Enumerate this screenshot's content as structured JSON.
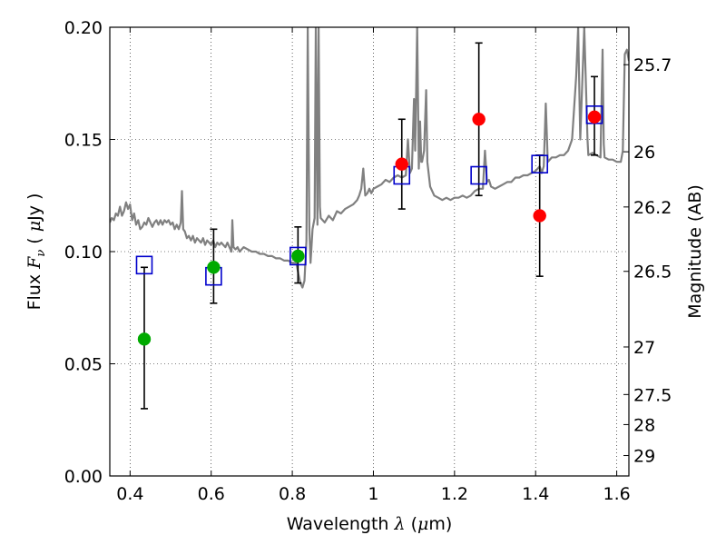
{
  "chart_data": {
    "type": "scatter",
    "xlabel_prefix": "Wavelength",
    "xlabel_symbol": "λ",
    "xlabel_unit_open": "(",
    "xlabel_unit_mu": "μ",
    "xlabel_unit_rest": "m)",
    "ylabel_prefix": "Flux",
    "ylabel_symbol": "F",
    "ylabel_sub": "ν",
    "ylabel_unit_open": "(",
    "ylabel_unit_mu": "μ",
    "ylabel_unit_rest": "Jy )",
    "y2label": "Magnitude (AB)",
    "xlim": [
      0.35,
      1.63
    ],
    "ylim": [
      0.0,
      0.2
    ],
    "x_ticks": [
      {
        "value": 0.4,
        "label": "0.4"
      },
      {
        "value": 0.6,
        "label": "0.6"
      },
      {
        "value": 0.8,
        "label": "0.8"
      },
      {
        "value": 1.0,
        "label": "1"
      },
      {
        "value": 1.2,
        "label": "1.2"
      },
      {
        "value": 1.4,
        "label": "1.4"
      },
      {
        "value": 1.6,
        "label": "1.6"
      }
    ],
    "y_ticks": [
      {
        "value": 0.0,
        "label": "0.00"
      },
      {
        "value": 0.05,
        "label": "0.05"
      },
      {
        "value": 0.1,
        "label": "0.10"
      },
      {
        "value": 0.15,
        "label": "0.15"
      },
      {
        "value": 0.2,
        "label": "0.20"
      }
    ],
    "mag_ticks": [
      {
        "flux": 0.1833,
        "label": "25.7"
      },
      {
        "flux": 0.1445,
        "label": "26"
      },
      {
        "flux": 0.1199,
        "label": "26.2"
      },
      {
        "flux": 0.0912,
        "label": "26.5"
      },
      {
        "flux": 0.0575,
        "label": "27"
      },
      {
        "flux": 0.0363,
        "label": "27.5"
      },
      {
        "flux": 0.0229,
        "label": "28"
      },
      {
        "flux": 0.0091,
        "label": "29"
      }
    ],
    "grid": true,
    "model_spectrum": {
      "color": "#808080",
      "points": [
        [
          0.35,
          0.113
        ],
        [
          0.355,
          0.115
        ],
        [
          0.36,
          0.114
        ],
        [
          0.365,
          0.117
        ],
        [
          0.37,
          0.116
        ],
        [
          0.375,
          0.12
        ],
        [
          0.38,
          0.116
        ],
        [
          0.385,
          0.118
        ],
        [
          0.39,
          0.122
        ],
        [
          0.395,
          0.119
        ],
        [
          0.4,
          0.121
        ],
        [
          0.405,
          0.114
        ],
        [
          0.41,
          0.117
        ],
        [
          0.415,
          0.112
        ],
        [
          0.42,
          0.114
        ],
        [
          0.425,
          0.11
        ],
        [
          0.43,
          0.111
        ],
        [
          0.435,
          0.113
        ],
        [
          0.44,
          0.112
        ],
        [
          0.445,
          0.115
        ],
        [
          0.45,
          0.113
        ],
        [
          0.455,
          0.111
        ],
        [
          0.46,
          0.113
        ],
        [
          0.465,
          0.114
        ],
        [
          0.47,
          0.112
        ],
        [
          0.475,
          0.114
        ],
        [
          0.48,
          0.112
        ],
        [
          0.485,
          0.114
        ],
        [
          0.49,
          0.113
        ],
        [
          0.495,
          0.114
        ],
        [
          0.5,
          0.112
        ],
        [
          0.505,
          0.113
        ],
        [
          0.51,
          0.11
        ],
        [
          0.515,
          0.112
        ],
        [
          0.52,
          0.11
        ],
        [
          0.525,
          0.113
        ],
        [
          0.528,
          0.127
        ],
        [
          0.531,
          0.11
        ],
        [
          0.535,
          0.109
        ],
        [
          0.54,
          0.106
        ],
        [
          0.545,
          0.107
        ],
        [
          0.55,
          0.105
        ],
        [
          0.555,
          0.107
        ],
        [
          0.56,
          0.104
        ],
        [
          0.565,
          0.106
        ],
        [
          0.57,
          0.105
        ],
        [
          0.575,
          0.104
        ],
        [
          0.58,
          0.106
        ],
        [
          0.585,
          0.103
        ],
        [
          0.59,
          0.105
        ],
        [
          0.595,
          0.104
        ],
        [
          0.6,
          0.103
        ],
        [
          0.605,
          0.105
        ],
        [
          0.61,
          0.102
        ],
        [
          0.615,
          0.104
        ],
        [
          0.62,
          0.103
        ],
        [
          0.625,
          0.104
        ],
        [
          0.63,
          0.103
        ],
        [
          0.635,
          0.102
        ],
        [
          0.64,
          0.104
        ],
        [
          0.645,
          0.102
        ],
        [
          0.65,
          0.1
        ],
        [
          0.652,
          0.114
        ],
        [
          0.655,
          0.102
        ],
        [
          0.66,
          0.101
        ],
        [
          0.665,
          0.102
        ],
        [
          0.67,
          0.1
        ],
        [
          0.68,
          0.102
        ],
        [
          0.69,
          0.101
        ],
        [
          0.7,
          0.1
        ],
        [
          0.71,
          0.1
        ],
        [
          0.72,
          0.099
        ],
        [
          0.73,
          0.099
        ],
        [
          0.74,
          0.098
        ],
        [
          0.75,
          0.098
        ],
        [
          0.76,
          0.097
        ],
        [
          0.77,
          0.097
        ],
        [
          0.78,
          0.096
        ],
        [
          0.79,
          0.096
        ],
        [
          0.8,
          0.095
        ],
        [
          0.81,
          0.095
        ],
        [
          0.815,
          0.09
        ],
        [
          0.82,
          0.086
        ],
        [
          0.825,
          0.084
        ],
        [
          0.83,
          0.087
        ],
        [
          0.835,
          0.105
        ],
        [
          0.838,
          0.2
        ],
        [
          0.842,
          0.11
        ],
        [
          0.845,
          0.095
        ],
        [
          0.85,
          0.11
        ],
        [
          0.855,
          0.115
        ],
        [
          0.858,
          0.2
        ],
        [
          0.862,
          0.112
        ],
        [
          0.865,
          0.2
        ],
        [
          0.868,
          0.12
        ],
        [
          0.87,
          0.115
        ],
        [
          0.88,
          0.113
        ],
        [
          0.89,
          0.116
        ],
        [
          0.9,
          0.114
        ],
        [
          0.91,
          0.118
        ],
        [
          0.92,
          0.117
        ],
        [
          0.93,
          0.119
        ],
        [
          0.94,
          0.12
        ],
        [
          0.95,
          0.121
        ],
        [
          0.96,
          0.123
        ],
        [
          0.965,
          0.125
        ],
        [
          0.97,
          0.128
        ],
        [
          0.975,
          0.137
        ],
        [
          0.98,
          0.125
        ],
        [
          0.985,
          0.126
        ],
        [
          0.99,
          0.128
        ],
        [
          0.995,
          0.126
        ],
        [
          1.0,
          0.128
        ],
        [
          1.01,
          0.129
        ],
        [
          1.02,
          0.13
        ],
        [
          1.03,
          0.132
        ],
        [
          1.04,
          0.131
        ],
        [
          1.05,
          0.133
        ],
        [
          1.06,
          0.134
        ],
        [
          1.07,
          0.133
        ],
        [
          1.08,
          0.134
        ],
        [
          1.085,
          0.15
        ],
        [
          1.09,
          0.135
        ],
        [
          1.095,
          0.137
        ],
        [
          1.1,
          0.168
        ],
        [
          1.103,
          0.145
        ],
        [
          1.108,
          0.2
        ],
        [
          1.112,
          0.137
        ],
        [
          1.115,
          0.158
        ],
        [
          1.118,
          0.14
        ],
        [
          1.12,
          0.14
        ],
        [
          1.125,
          0.145
        ],
        [
          1.13,
          0.172
        ],
        [
          1.133,
          0.14
        ],
        [
          1.14,
          0.129
        ],
        [
          1.15,
          0.125
        ],
        [
          1.16,
          0.124
        ],
        [
          1.17,
          0.123
        ],
        [
          1.18,
          0.124
        ],
        [
          1.19,
          0.123
        ],
        [
          1.2,
          0.124
        ],
        [
          1.21,
          0.124
        ],
        [
          1.22,
          0.125
        ],
        [
          1.23,
          0.124
        ],
        [
          1.24,
          0.125
        ],
        [
          1.25,
          0.127
        ],
        [
          1.26,
          0.128
        ],
        [
          1.27,
          0.128
        ],
        [
          1.275,
          0.145
        ],
        [
          1.28,
          0.131
        ],
        [
          1.285,
          0.132
        ],
        [
          1.29,
          0.129
        ],
        [
          1.3,
          0.128
        ],
        [
          1.31,
          0.129
        ],
        [
          1.32,
          0.13
        ],
        [
          1.33,
          0.131
        ],
        [
          1.34,
          0.131
        ],
        [
          1.35,
          0.133
        ],
        [
          1.36,
          0.133
        ],
        [
          1.37,
          0.134
        ],
        [
          1.38,
          0.134
        ],
        [
          1.39,
          0.135
        ],
        [
          1.4,
          0.136
        ],
        [
          1.41,
          0.138
        ],
        [
          1.415,
          0.135
        ],
        [
          1.42,
          0.138
        ],
        [
          1.425,
          0.166
        ],
        [
          1.43,
          0.14
        ],
        [
          1.435,
          0.141
        ],
        [
          1.44,
          0.142
        ],
        [
          1.45,
          0.142
        ],
        [
          1.46,
          0.143
        ],
        [
          1.47,
          0.143
        ],
        [
          1.48,
          0.145
        ],
        [
          1.49,
          0.15
        ],
        [
          1.5,
          0.178
        ],
        [
          1.505,
          0.2
        ],
        [
          1.51,
          0.15
        ],
        [
          1.52,
          0.2
        ],
        [
          1.528,
          0.15
        ],
        [
          1.53,
          0.143
        ],
        [
          1.54,
          0.144
        ],
        [
          1.55,
          0.143
        ],
        [
          1.56,
          0.142
        ],
        [
          1.565,
          0.19
        ],
        [
          1.568,
          0.148
        ],
        [
          1.57,
          0.142
        ],
        [
          1.58,
          0.141
        ],
        [
          1.59,
          0.141
        ],
        [
          1.6,
          0.14
        ],
        [
          1.61,
          0.14
        ],
        [
          1.615,
          0.145
        ],
        [
          1.62,
          0.188
        ],
        [
          1.625,
          0.19
        ],
        [
          1.63,
          0.185
        ]
      ]
    },
    "model_photometry": {
      "marker": "open-square",
      "color": "#0000cc",
      "points": [
        {
          "x": 0.435,
          "y": 0.094
        },
        {
          "x": 0.606,
          "y": 0.089
        },
        {
          "x": 0.814,
          "y": 0.098
        },
        {
          "x": 1.07,
          "y": 0.134
        },
        {
          "x": 1.26,
          "y": 0.134
        },
        {
          "x": 1.41,
          "y": 0.139
        },
        {
          "x": 1.545,
          "y": 0.161
        }
      ]
    },
    "observed": [
      {
        "x": 0.435,
        "y": 0.061,
        "ylo": 0.03,
        "yhi": 0.093,
        "color": "#00aa00"
      },
      {
        "x": 0.606,
        "y": 0.093,
        "ylo": 0.077,
        "yhi": 0.11,
        "color": "#00aa00"
      },
      {
        "x": 0.814,
        "y": 0.098,
        "ylo": 0.086,
        "yhi": 0.111,
        "color": "#00aa00"
      },
      {
        "x": 1.07,
        "y": 0.139,
        "ylo": 0.119,
        "yhi": 0.159,
        "color": "#ff0000"
      },
      {
        "x": 1.26,
        "y": 0.159,
        "ylo": 0.125,
        "yhi": 0.193,
        "color": "#ff0000"
      },
      {
        "x": 1.41,
        "y": 0.116,
        "ylo": 0.089,
        "yhi": 0.143,
        "color": "#ff0000"
      },
      {
        "x": 1.545,
        "y": 0.16,
        "ylo": 0.143,
        "yhi": 0.178,
        "color": "#ff0000"
      }
    ]
  }
}
